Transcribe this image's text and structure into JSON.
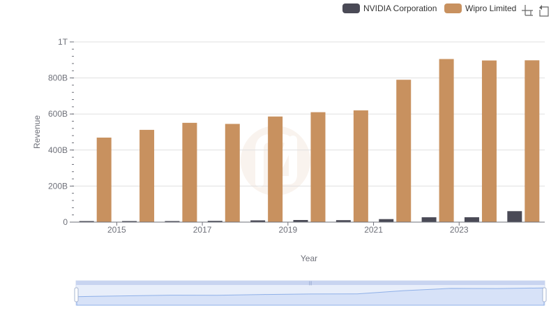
{
  "chart_data": {
    "type": "bar",
    "title": "",
    "xlabel": "Year",
    "ylabel": "Revenue",
    "ylim": [
      0,
      1000000000000
    ],
    "y_ticks": [
      {
        "value": 0,
        "label": "0"
      },
      {
        "value": 200000000000,
        "label": "200B"
      },
      {
        "value": 400000000000,
        "label": "400B"
      },
      {
        "value": 600000000000,
        "label": "600B"
      },
      {
        "value": 800000000000,
        "label": "800B"
      },
      {
        "value": 1000000000000,
        "label": "1T"
      }
    ],
    "categories": [
      "2014",
      "2015",
      "2016",
      "2017",
      "2018",
      "2019",
      "2020",
      "2021",
      "2022",
      "2023",
      "2024"
    ],
    "x_tick_labels": [
      "2015",
      "2017",
      "2019",
      "2021",
      "2023"
    ],
    "series": [
      {
        "name": "NVIDIA Corporation",
        "color": "#4a4a56",
        "values": [
          4100000000,
          4700000000,
          5000000000,
          6900000000,
          9700000000,
          11700000000,
          10900000000,
          16700000000,
          26900000000,
          27000000000,
          60900000000
        ]
      },
      {
        "name": "Wipro Limited",
        "color": "#c8915f",
        "values": [
          469000000000,
          512000000000,
          551000000000,
          545000000000,
          586000000000,
          610000000000,
          620000000000,
          790000000000,
          905000000000,
          897000000000,
          898000000000
        ]
      }
    ],
    "legend_position": "top-right",
    "grid": true,
    "dataZoom": true
  },
  "toolbox": {
    "zoom_icon": "zoom-icon",
    "restore_icon": "restore-icon"
  }
}
